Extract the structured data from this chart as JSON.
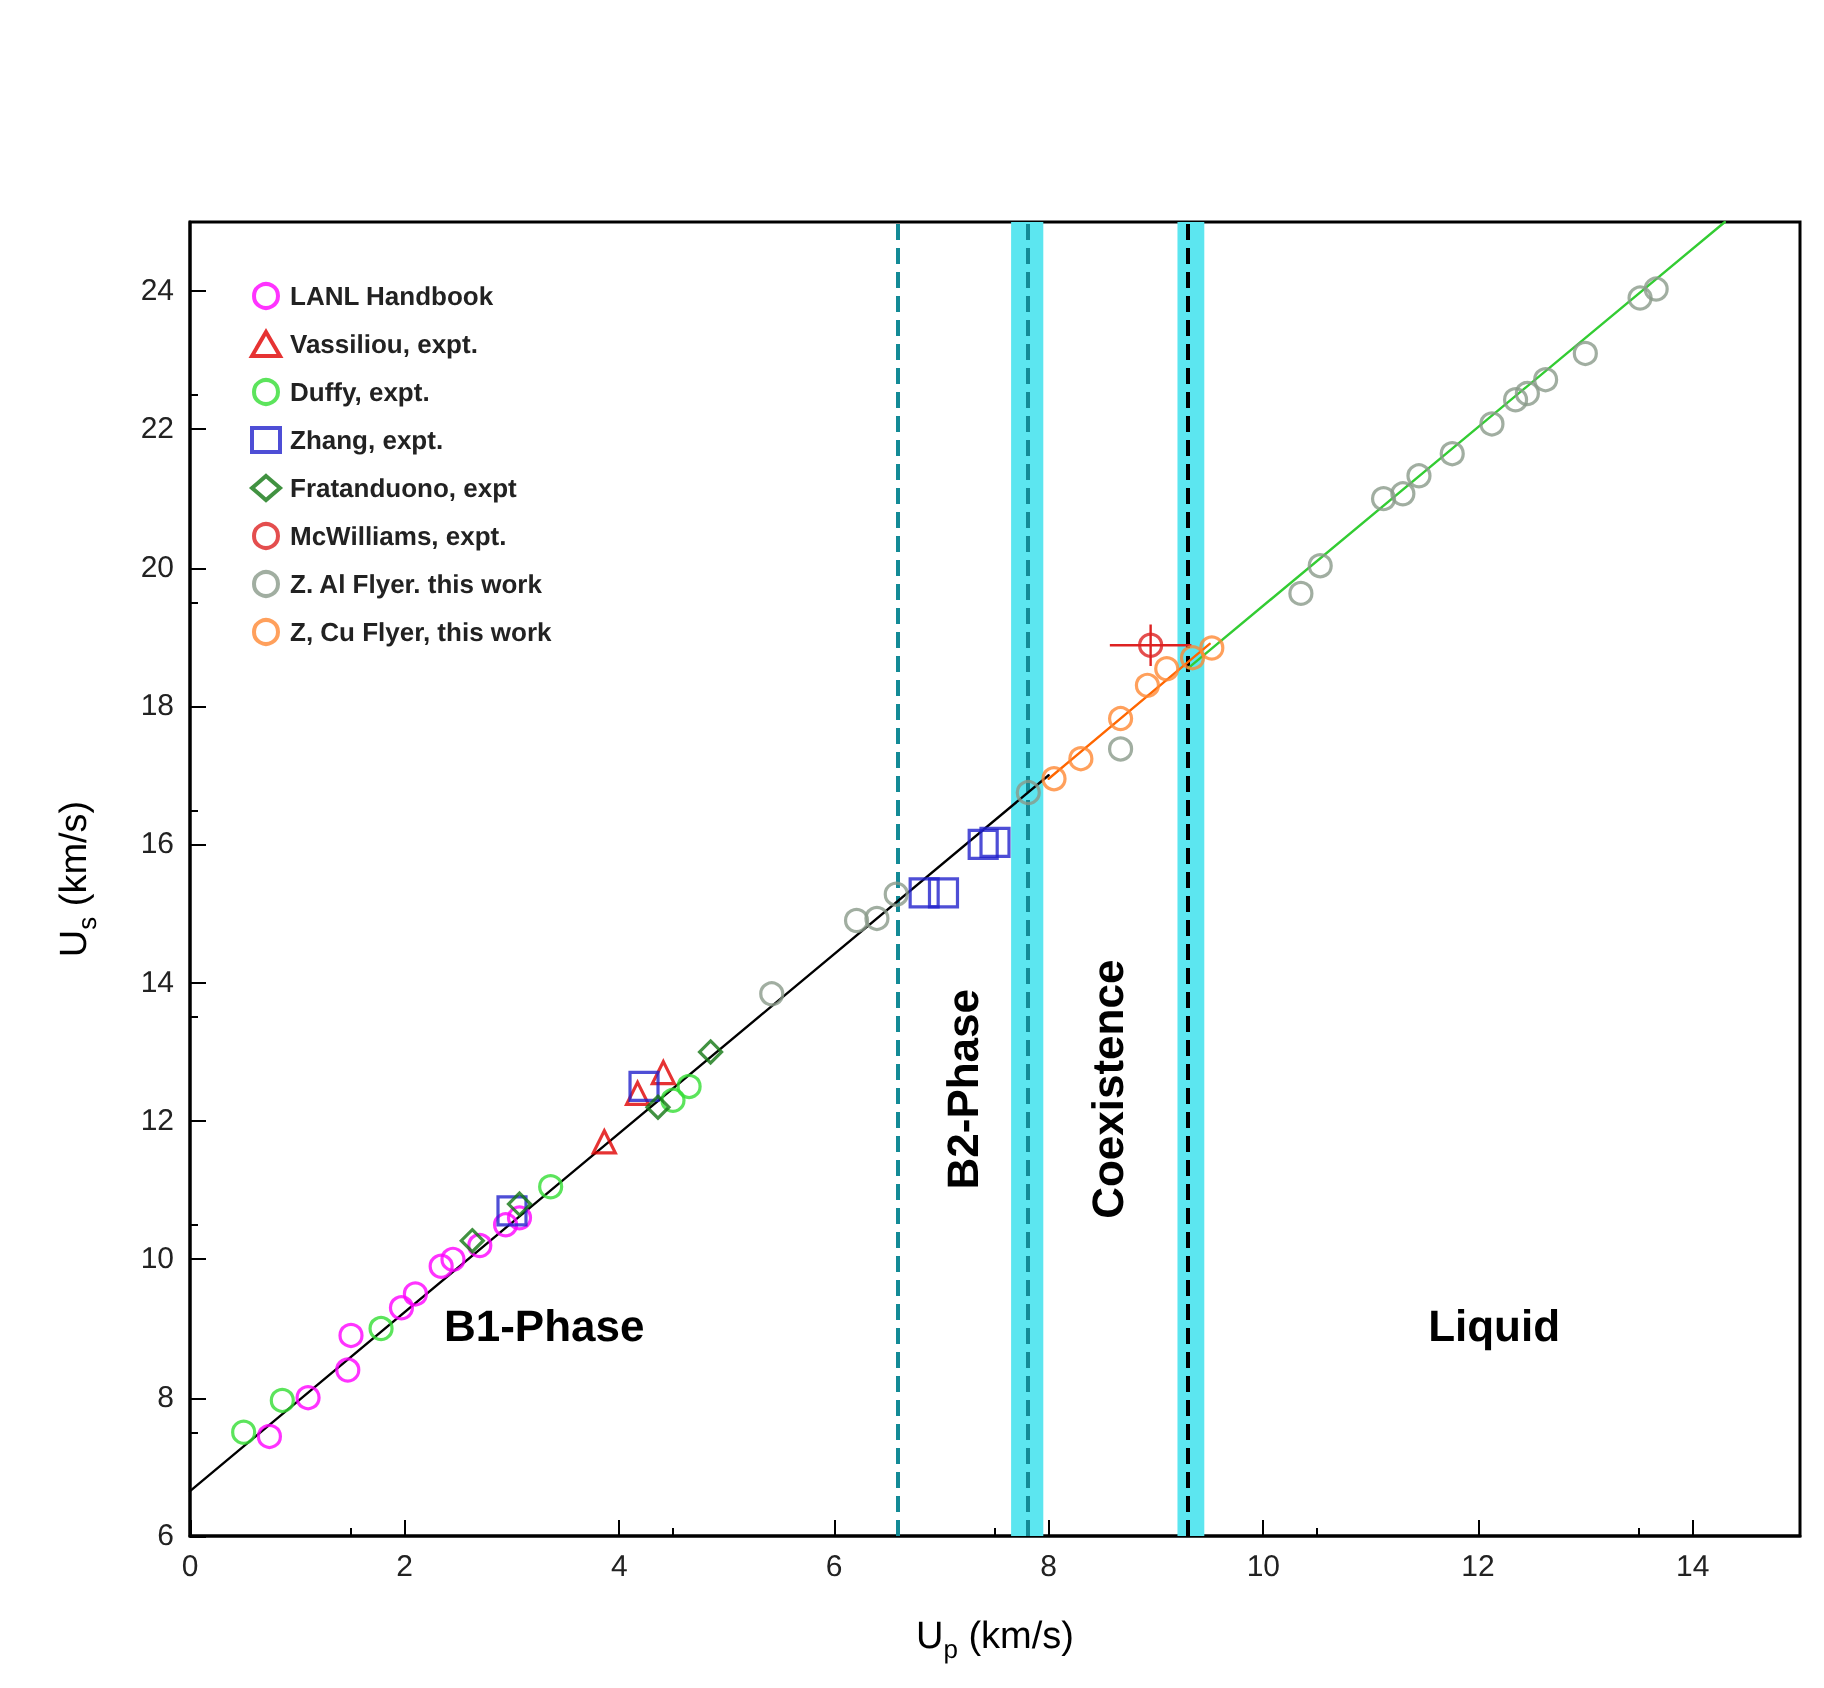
{
  "chart_data": {
    "type": "scatter",
    "xlabel": "U$_{p}$ (km/s)",
    "ylabel": "U$_{s}$ (km/s)",
    "xlim": [
      0,
      15
    ],
    "xticks": [
      0,
      2,
      4,
      6,
      8,
      10,
      12,
      14
    ],
    "ylim": [
      6,
      25
    ],
    "yticks": [
      6,
      8,
      10,
      12,
      14,
      16,
      18,
      20,
      22,
      24
    ],
    "grid": false,
    "legend": "top left",
    "series": [
      {
        "name": "LANL Handbook",
        "color": "#ff00ff",
        "marker": "circle",
        "x": [
          0.74,
          1.1,
          1.47,
          1.5,
          1.97,
          2.1,
          2.34,
          2.45,
          2.7,
          2.94,
          3.07
        ],
        "values": [
          7.44,
          8.0,
          8.4,
          8.9,
          9.3,
          9.5,
          9.9,
          10.0,
          10.2,
          10.5,
          10.6
        ]
      },
      {
        "name": "Vassiliou, expt.",
        "color": "#e00000",
        "marker": "triangle",
        "x": [
          3.86,
          4.17,
          4.41
        ],
        "values": [
          11.7,
          12.4,
          12.7
        ]
      },
      {
        "name": "Duffy, expt.",
        "color": "#33dd33",
        "marker": "circle",
        "x": [
          0.5,
          0.86,
          1.78,
          3.36,
          4.5,
          4.65
        ],
        "values": [
          7.5,
          7.96,
          9.0,
          11.05,
          12.3,
          12.5
        ]
      },
      {
        "name": "Zhang, expt.",
        "color": "#2222cc",
        "marker": "square",
        "x": [
          3.0,
          4.23,
          6.84,
          7.02,
          7.39,
          7.5
        ],
        "values": [
          10.7,
          12.5,
          15.3,
          15.3,
          16.0,
          16.03
        ]
      },
      {
        "name": "Fratanduono, expt",
        "color": "#117711",
        "marker": "diamond",
        "x": [
          2.63,
          3.07,
          4.36,
          4.85
        ],
        "values": [
          10.27,
          10.8,
          12.2,
          13.0
        ]
      },
      {
        "name": "McWilliams, expt.",
        "color": "#dd2222",
        "marker": "circle",
        "x": [
          8.95
        ],
        "values": [
          18.88
        ],
        "errors": [
          0.3
        ],
        "xerrors": [
          0.38
        ]
      },
      {
        "name": "Z. Al Flyer. this work",
        "color": "#8a9a8a",
        "marker": "circle",
        "x": [
          5.42,
          6.21,
          6.4,
          6.58,
          7.81,
          8.67,
          10.35,
          10.53,
          11.12,
          11.3,
          11.45,
          11.76,
          12.13,
          12.35,
          12.46,
          12.63,
          13.0,
          13.51,
          13.66
        ],
        "values": [
          13.84,
          14.9,
          14.93,
          15.28,
          16.75,
          17.38,
          19.63,
          20.03,
          21.0,
          21.07,
          21.33,
          21.65,
          22.08,
          22.43,
          22.52,
          22.72,
          23.1,
          23.9,
          24.03
        ]
      },
      {
        "name": "Z, Cu Flyer, this work",
        "color": "#ff8833",
        "marker": "circle",
        "x": [
          8.05,
          8.3,
          8.67,
          8.92,
          9.1,
          9.34,
          9.52
        ],
        "values": [
          16.95,
          17.24,
          17.82,
          18.3,
          18.54,
          18.7,
          18.84
        ]
      },
      {
        "type": "line",
        "color": "#000000",
        "marker": "none",
        "x": [
          0,
          8
        ],
        "values": [
          6.65,
          17.0
        ]
      },
      {
        "type": "line",
        "color": "#ff6600",
        "marker": "none",
        "x": [
          8,
          9.5
        ],
        "values": [
          16.95,
          18.9
        ]
      },
      {
        "type": "line",
        "color": "#33cc33",
        "marker": "none",
        "x": [
          9.3,
          14.3
        ],
        "values": [
          18.55,
          25
        ]
      }
    ],
    "ref_lines": [
      {
        "axis": "x",
        "value": 6.6,
        "color": "#138a96",
        "line_style": "dashed"
      },
      {
        "axis": "x",
        "value": 7.8,
        "color": "#138a96",
        "line_style": "dashed"
      },
      {
        "axis": "x",
        "value": 9.3,
        "color": "#000000",
        "line_style": "dashed"
      }
    ],
    "bands": [
      {
        "axis": "x",
        "from": 7.65,
        "to": 7.95,
        "color": "#5ce6f0"
      },
      {
        "axis": "x",
        "from": 9.2,
        "to": 9.45,
        "color": "#5ce6f0"
      }
    ],
    "annotations": [
      "B1-Phase",
      "B2-Phase",
      "Coexistence",
      "Liquid"
    ]
  }
}
